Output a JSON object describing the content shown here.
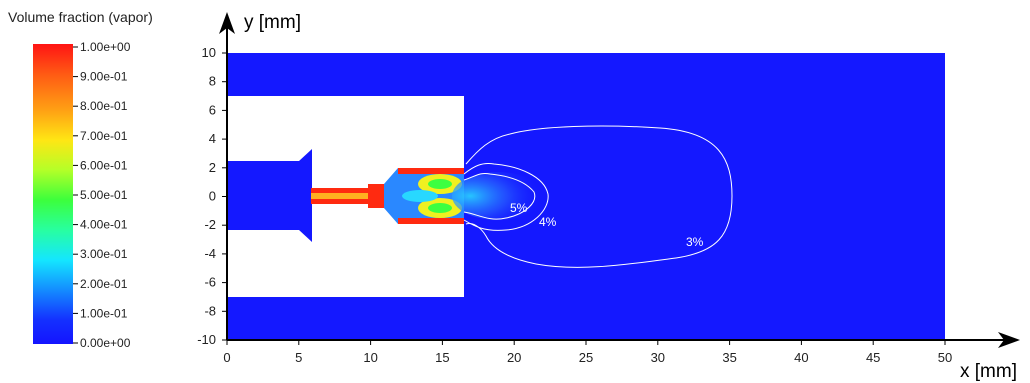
{
  "colorbar": {
    "title": "Volume fraction (vapor)",
    "ticks": [
      "1.00e+00",
      "9.00e-01",
      "8.00e-01",
      "7.00e-01",
      "6.00e-01",
      "5.00e-01",
      "4.00e-01",
      "3.00e-01",
      "2.00e-01",
      "1.00e-01",
      "0.00e+00"
    ]
  },
  "axes": {
    "xlabel": "x [mm]",
    "ylabel": "y [mm]",
    "xticks": [
      "0",
      "5",
      "10",
      "15",
      "20",
      "25",
      "30",
      "35",
      "40",
      "45",
      "50"
    ],
    "yticks": [
      "10",
      "8",
      "6",
      "4",
      "2",
      "0",
      "-2",
      "-4",
      "-6",
      "-8",
      "-10"
    ]
  },
  "contours": [
    {
      "label": "5%"
    },
    {
      "label": "4%"
    },
    {
      "label": "3%"
    }
  ],
  "colors": {
    "background_field": "#1418ff",
    "red": "#ff2a10",
    "orange": "#ff9a18",
    "yellow": "#f0f020",
    "green": "#3cff40",
    "cyan": "#28d8ff",
    "contour_line": "#ffffff"
  }
}
